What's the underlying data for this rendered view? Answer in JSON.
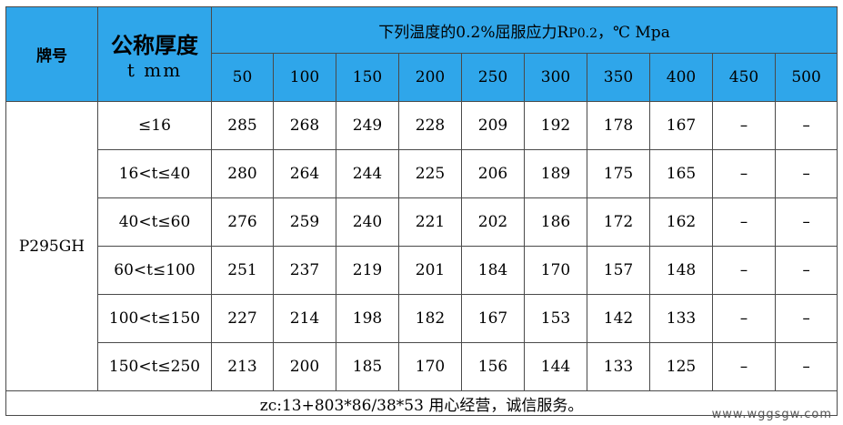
{
  "header": {
    "grade_label": "牌号",
    "thickness_label": "公称厚度",
    "thickness_unit": "t mm",
    "title_prefix": "下列温度的0.2%屈服应力R",
    "title_sub": "P0.2",
    "title_suffix": "，℃ Mpa",
    "temperatures": [
      "50",
      "100",
      "150",
      "200",
      "250",
      "300",
      "350",
      "400",
      "450",
      "500"
    ]
  },
  "grade": "P295GH",
  "rows": [
    {
      "thickness": "≤16",
      "values": [
        "285",
        "268",
        "249",
        "228",
        "209",
        "192",
        "178",
        "167",
        "–",
        "–"
      ]
    },
    {
      "thickness": "16<t≤40",
      "values": [
        "280",
        "264",
        "244",
        "225",
        "206",
        "189",
        "175",
        "165",
        "–",
        "–"
      ]
    },
    {
      "thickness": "40<t≤60",
      "values": [
        "276",
        "259",
        "240",
        "221",
        "202",
        "186",
        "172",
        "162",
        "–",
        "–"
      ]
    },
    {
      "thickness": "60<t≤100",
      "values": [
        "251",
        "237",
        "219",
        "201",
        "184",
        "170",
        "157",
        "148",
        "–",
        "–"
      ]
    },
    {
      "thickness": "100<t≤150",
      "values": [
        "227",
        "214",
        "198",
        "182",
        "167",
        "153",
        "142",
        "133",
        "–",
        "–"
      ]
    },
    {
      "thickness": "150<t≤250",
      "values": [
        "213",
        "200",
        "185",
        "170",
        "156",
        "144",
        "133",
        "125",
        "–",
        "–"
      ]
    }
  ],
  "footer": "zc:13+803*86/38*53 用心经营，诚信服务。",
  "watermark": "www.wggsgw.com",
  "colors": {
    "header_bg": "#2fa6ea",
    "border": "#4a4a4a"
  }
}
